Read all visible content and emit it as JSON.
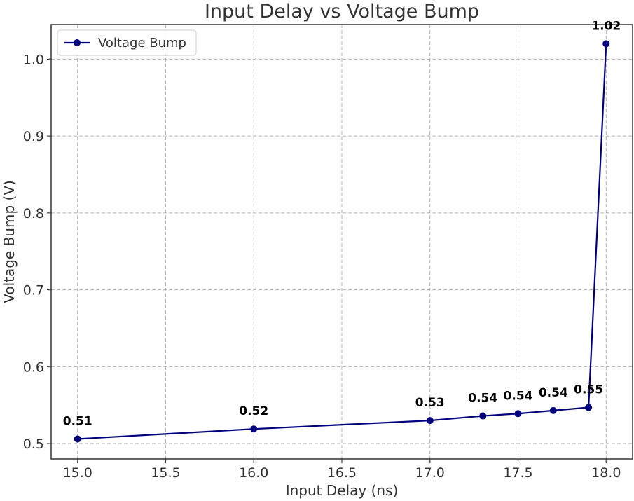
{
  "chart_data": {
    "type": "line",
    "title": "Input Delay vs Voltage Bump",
    "xlabel": "Input Delay (ns)",
    "ylabel": "Voltage Bump (V)",
    "xlim": [
      14.85,
      18.15
    ],
    "ylim": [
      0.48,
      1.045
    ],
    "x_ticks": [
      15.0,
      15.5,
      16.0,
      16.5,
      17.0,
      17.5,
      18.0
    ],
    "x_tick_labels": [
      "15.0",
      "15.5",
      "16.0",
      "16.5",
      "17.0",
      "17.5",
      "18.0"
    ],
    "y_ticks": [
      0.5,
      0.6,
      0.7,
      0.8,
      0.9,
      1.0
    ],
    "y_tick_labels": [
      "0.5",
      "0.6",
      "0.7",
      "0.8",
      "0.9",
      "1.0"
    ],
    "grid": true,
    "legend_position": "top-left",
    "series": [
      {
        "name": "Voltage Bump",
        "color": "#00007f",
        "marker": "circle",
        "x": [
          15.0,
          16.0,
          17.0,
          17.3,
          17.5,
          17.7,
          17.9,
          18.0
        ],
        "y": [
          0.506,
          0.519,
          0.53,
          0.536,
          0.539,
          0.543,
          0.547,
          1.02
        ],
        "labels": [
          "0.51",
          "0.52",
          "0.53",
          "0.54",
          "0.54",
          "0.54",
          "0.55",
          "1.02"
        ]
      }
    ]
  }
}
